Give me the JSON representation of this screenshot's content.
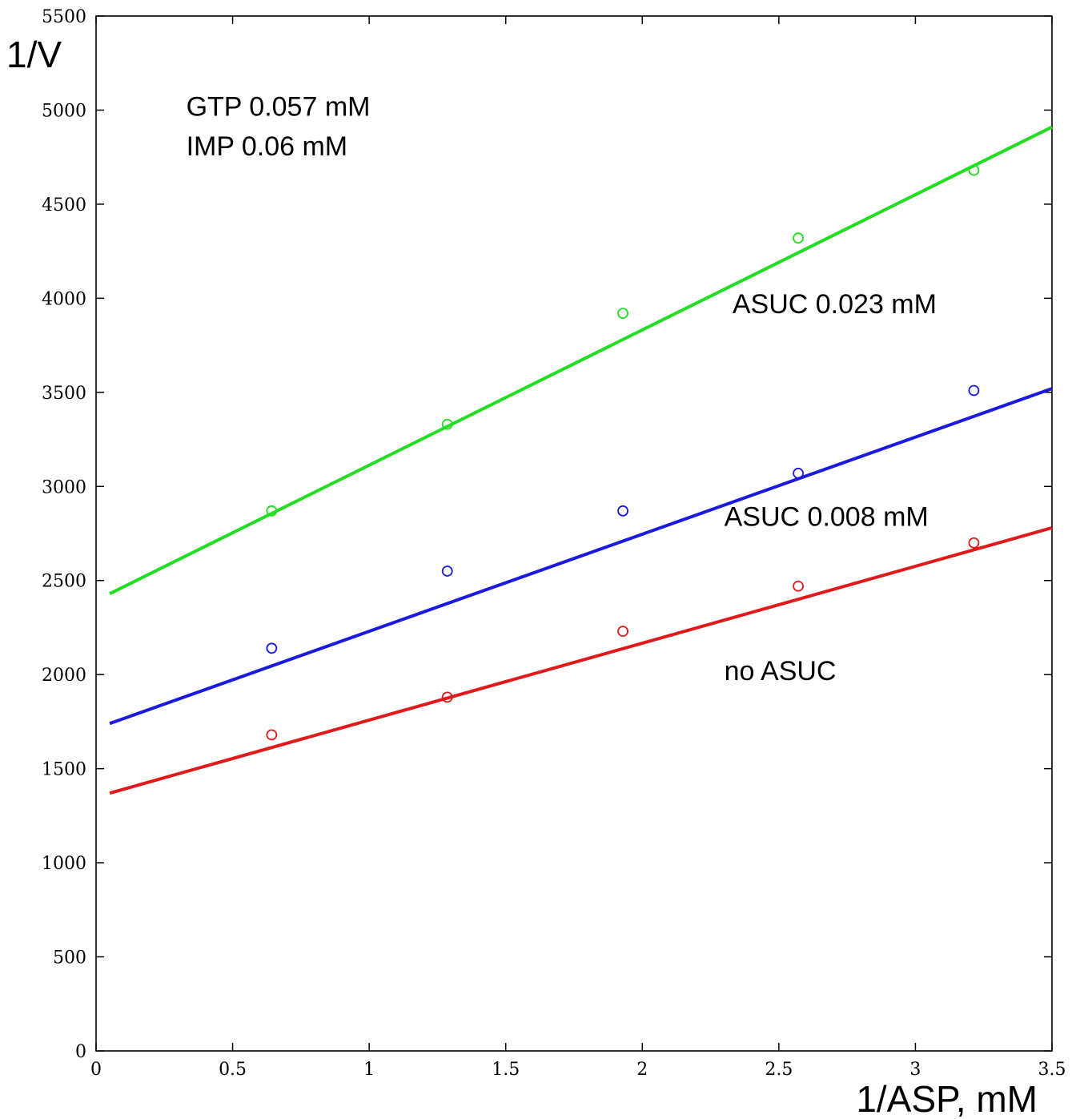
{
  "chart_data": {
    "type": "scatter",
    "title": "",
    "xlabel": "1/ASP, mM",
    "ylabel": "1/V",
    "xlim": [
      0,
      3.5
    ],
    "ylim": [
      0,
      5500
    ],
    "x_ticks": [
      0,
      0.5,
      1,
      1.5,
      2,
      2.5,
      3,
      3.5
    ],
    "x_tick_labels": [
      "0",
      "0.5",
      "1",
      "1.5",
      "2",
      "2.5",
      "3",
      "3.5"
    ],
    "y_ticks": [
      0,
      500,
      1000,
      1500,
      2000,
      2500,
      3000,
      3500,
      4000,
      4500,
      5000,
      5500
    ],
    "y_tick_labels": [
      "0",
      "500",
      "1000",
      "1500",
      "2000",
      "2500",
      "3000",
      "3500",
      "4000",
      "4500",
      "5000",
      "5500"
    ],
    "grid": false,
    "legend": "none",
    "annotations": [
      {
        "text": "GTP 0.057 mM",
        "x": 0.33,
        "y": 4970
      },
      {
        "text": "IMP 0.06 mM",
        "x": 0.33,
        "y": 4760
      },
      {
        "text": "ASUC 0.023 mM",
        "x": 2.33,
        "y": 3920
      },
      {
        "text": "ASUC 0.008 mM",
        "x": 2.3,
        "y": 2790
      },
      {
        "text": "no ASUC",
        "x": 2.3,
        "y": 1970
      }
    ],
    "series": [
      {
        "label": "ASUC 0.023 mM",
        "color": "#22dd22",
        "x": [
          0.643,
          1.286,
          1.929,
          2.571,
          3.214
        ],
        "y": [
          2870,
          3330,
          3920,
          4320,
          4680
        ],
        "fit": {
          "x": [
            0.05,
            3.5
          ],
          "y": [
            2430,
            4910
          ]
        }
      },
      {
        "label": "ASUC 0.008 mM",
        "color": "#1a1adf",
        "x": [
          0.643,
          1.286,
          1.929,
          2.571,
          3.214
        ],
        "y": [
          2140,
          2550,
          2870,
          3070,
          3510
        ],
        "fit": {
          "x": [
            0.05,
            3.5
          ],
          "y": [
            1740,
            3520
          ]
        }
      },
      {
        "label": "no ASUC",
        "color": "#e01a1a",
        "x": [
          0.643,
          1.286,
          1.929,
          2.571,
          3.214
        ],
        "y": [
          1680,
          1880,
          2230,
          2470,
          2700
        ],
        "fit": {
          "x": [
            0.05,
            3.5
          ],
          "y": [
            1370,
            2780
          ]
        }
      }
    ]
  }
}
